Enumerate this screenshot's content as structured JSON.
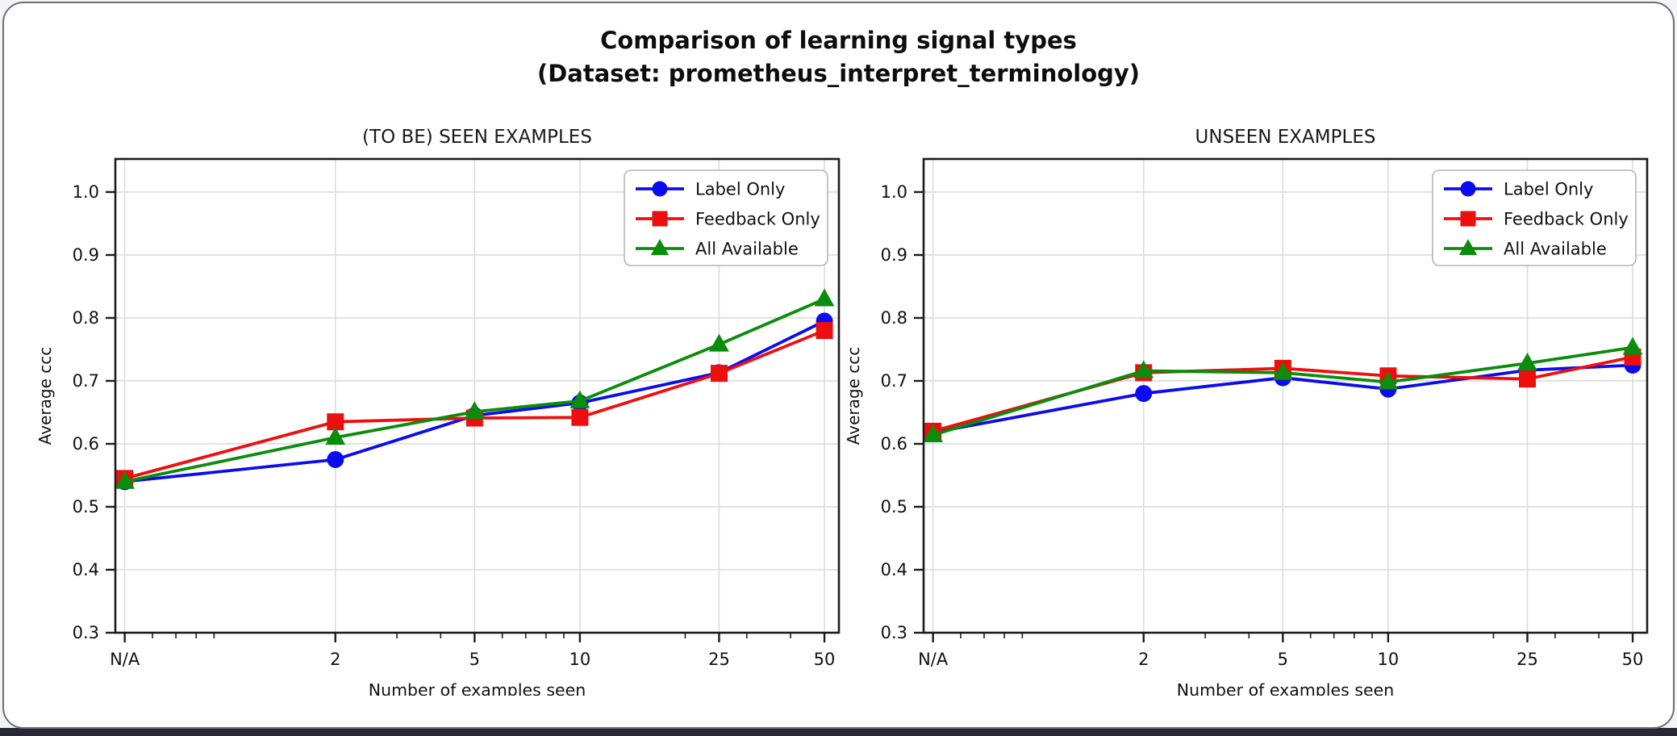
{
  "page": {
    "card_background": "#ffffff",
    "card_border_color": "#6b6d78",
    "bottom_bar_color": "#262833",
    "grid_color": "#dcdcdc",
    "spine_color": "#1c1c1c",
    "text_color": "#111111"
  },
  "header": {
    "title_line1": "Comparison of learning signal types",
    "title_line2": "(Dataset: prometheus_interpret_terminology)"
  },
  "chart_data": [
    {
      "type": "line",
      "title": "(TO BE) SEEN EXAMPLES",
      "xlabel": "Number of examples seen",
      "ylabel": "Average ccc",
      "x_scale": "log",
      "x_categories": [
        "N/A",
        "2",
        "5",
        "10",
        "25",
        "50"
      ],
      "x_values": [
        0.5,
        2,
        5,
        10,
        25,
        50
      ],
      "x_domain": [
        0.47,
        55
      ],
      "minor_xticks": [
        0.6,
        0.7,
        0.8,
        0.9,
        3,
        4,
        6,
        7,
        8,
        9,
        20,
        30,
        40
      ],
      "yticks": [
        0.3,
        0.4,
        0.5,
        0.6,
        0.7,
        0.8,
        0.9,
        1.0
      ],
      "ylim": [
        0.3,
        1.0525
      ],
      "grid": true,
      "legend_position": "upper right",
      "series": [
        {
          "name": "Label Only",
          "color": "#0b0bf0",
          "marker": "circle",
          "values": [
            0.54,
            0.575,
            0.645,
            0.665,
            0.713,
            0.795
          ]
        },
        {
          "name": "Feedback Only",
          "color": "#ee0e0e",
          "marker": "square",
          "values": [
            0.545,
            0.635,
            0.641,
            0.642,
            0.712,
            0.78
          ]
        },
        {
          "name": "All Available",
          "color": "#0b8c0b",
          "marker": "triangle",
          "values": [
            0.54,
            0.61,
            0.651,
            0.668,
            0.758,
            0.83
          ]
        }
      ]
    },
    {
      "type": "line",
      "title": "UNSEEN EXAMPLES",
      "xlabel": "Number of examples seen",
      "ylabel": "Average ccc",
      "x_scale": "log",
      "x_categories": [
        "N/A",
        "2",
        "5",
        "10",
        "25",
        "50"
      ],
      "x_values": [
        0.5,
        2,
        5,
        10,
        25,
        50
      ],
      "x_domain": [
        0.47,
        55
      ],
      "minor_xticks": [
        0.6,
        0.7,
        0.8,
        0.9,
        3,
        4,
        6,
        7,
        8,
        9,
        20,
        30,
        40
      ],
      "yticks": [
        0.3,
        0.4,
        0.5,
        0.6,
        0.7,
        0.8,
        0.9,
        1.0
      ],
      "ylim": [
        0.3,
        1.0525
      ],
      "grid": true,
      "legend_position": "upper right",
      "series": [
        {
          "name": "Label Only",
          "color": "#0b0bf0",
          "marker": "circle",
          "values": [
            0.618,
            0.68,
            0.705,
            0.687,
            0.717,
            0.725
          ]
        },
        {
          "name": "Feedback Only",
          "color": "#ee0e0e",
          "marker": "square",
          "values": [
            0.62,
            0.713,
            0.72,
            0.708,
            0.703,
            0.738
          ]
        },
        {
          "name": "All Available",
          "color": "#0b8c0b",
          "marker": "triangle",
          "values": [
            0.614,
            0.716,
            0.713,
            0.698,
            0.728,
            0.753
          ]
        }
      ]
    }
  ]
}
